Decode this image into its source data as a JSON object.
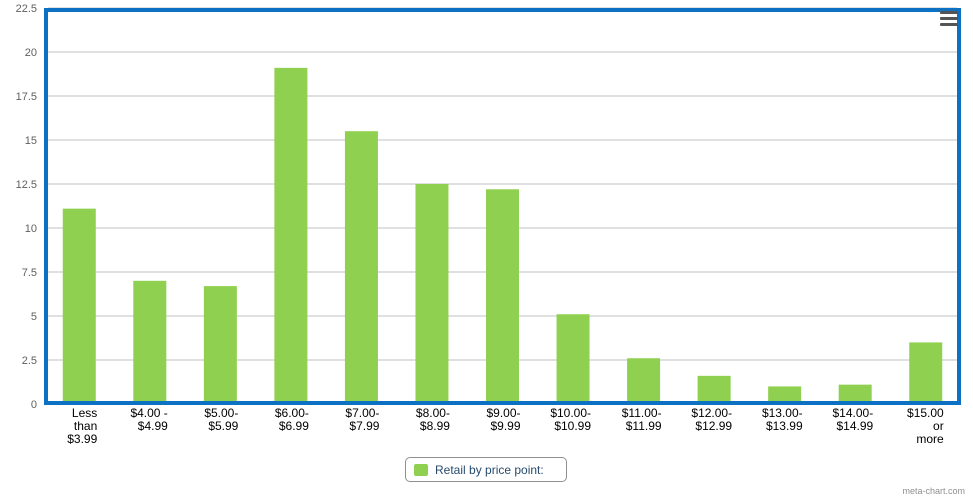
{
  "chart_data": {
    "type": "bar",
    "categories": [
      [
        "Less",
        "than",
        "$3.99"
      ],
      [
        "$4.00 -",
        "$4.99"
      ],
      [
        "$5.00-",
        "$5.99"
      ],
      [
        "$6.00-",
        "$6.99"
      ],
      [
        "$7.00-",
        "$7.99"
      ],
      [
        "$8.00-",
        "$8.99"
      ],
      [
        "$9.00-",
        "$9.99"
      ],
      [
        "$10.00-",
        "$10.99"
      ],
      [
        "$11.00-",
        "$11.99"
      ],
      [
        "$12.00-",
        "$12.99"
      ],
      [
        "$13.00-",
        "$13.99"
      ],
      [
        "$14.00-",
        "$14.99"
      ],
      [
        "$15.00",
        "or",
        "more"
      ]
    ],
    "series": [
      {
        "name": "Retail by price point:",
        "values": [
          11.1,
          7.0,
          6.7,
          19.1,
          15.5,
          12.5,
          12.2,
          5.1,
          2.6,
          1.6,
          1.0,
          1.1,
          3.5
        ]
      }
    ],
    "y_ticks": [
      "0",
      "2.5",
      "5",
      "7.5",
      "10",
      "12.5",
      "15",
      "17.5",
      "20",
      "22.5"
    ],
    "ylim": [
      0,
      22.5
    ],
    "grid": true,
    "legend_position": "bottom-center",
    "bar_color": "#90d050",
    "axis_color": "#0c71c3",
    "grid_color": "#c0c0c0"
  },
  "legend": {
    "label": "Retail by price point:"
  },
  "menu": {
    "icon": "hamburger-menu-icon"
  },
  "credits": {
    "text": "meta-chart.com"
  }
}
